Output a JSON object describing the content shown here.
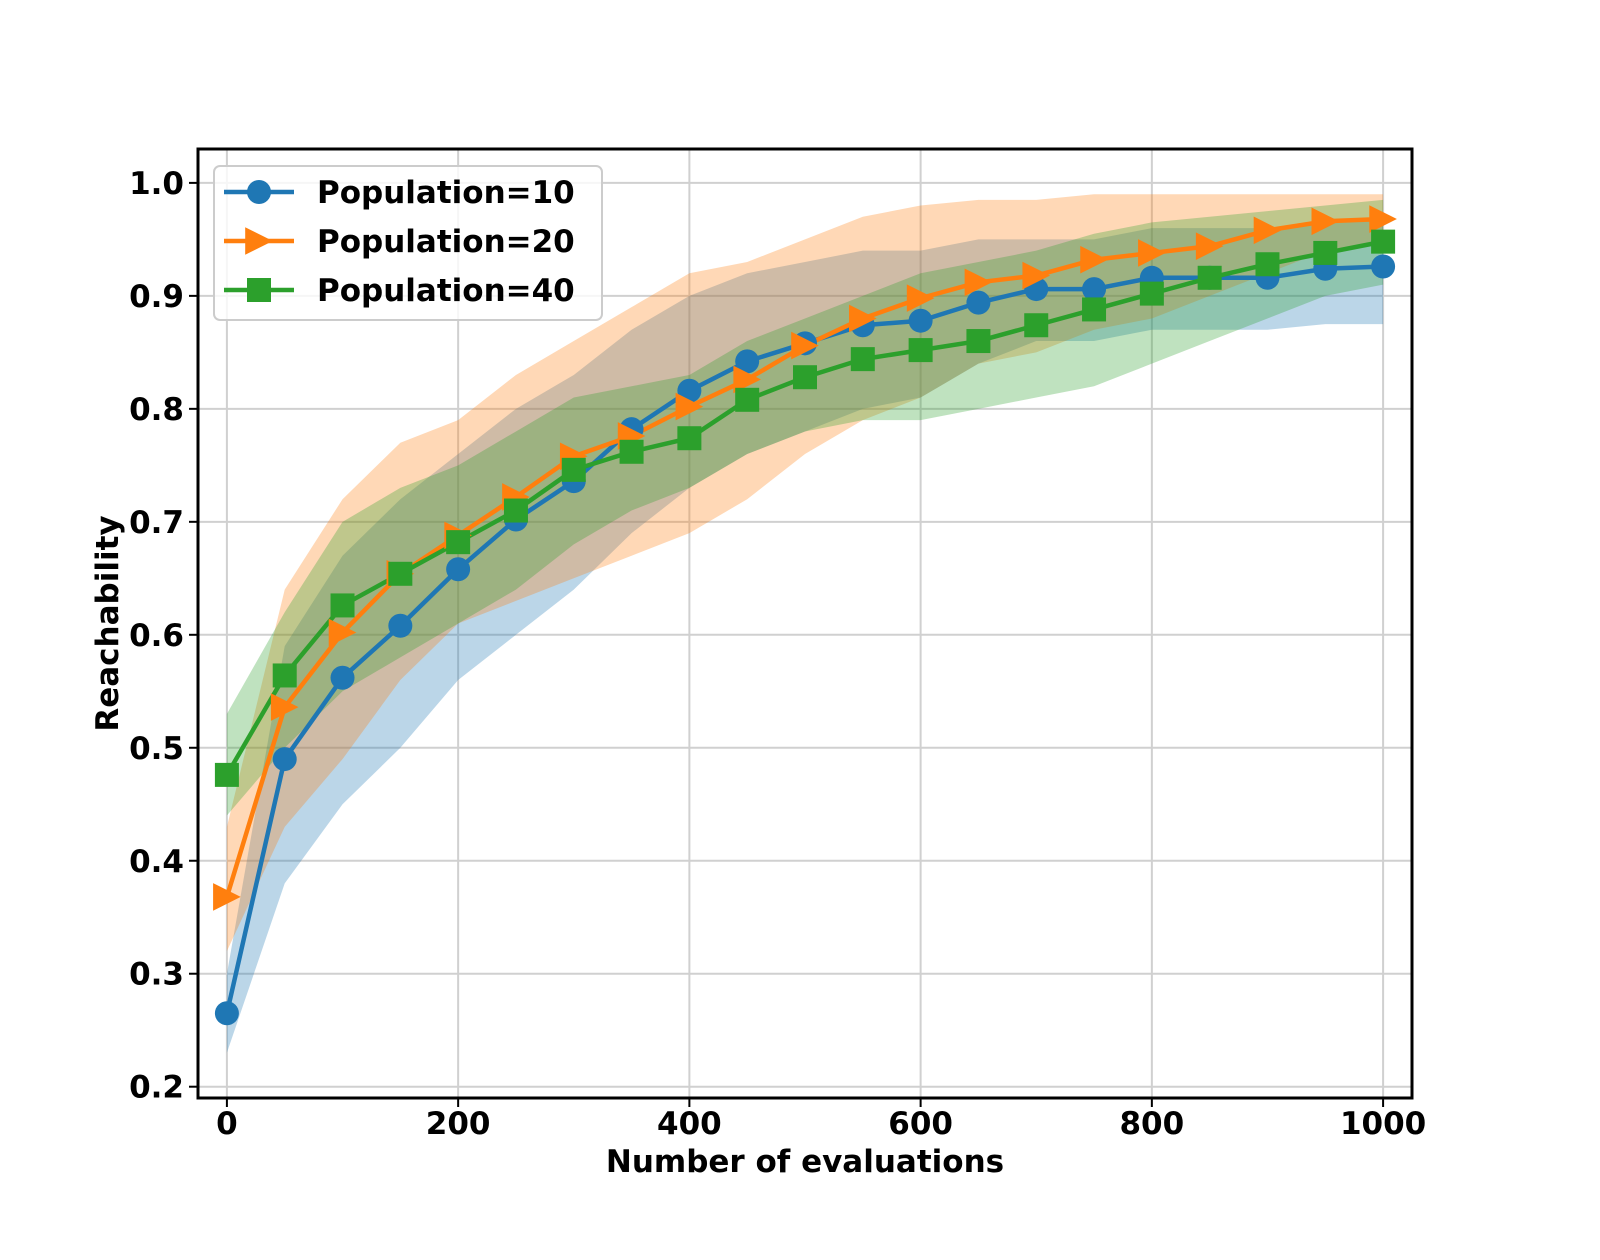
{
  "chart_data": {
    "type": "line",
    "title": "",
    "xlabel": "Number of evaluations",
    "ylabel": "Reachability",
    "xlim": [
      -25,
      1025
    ],
    "ylim": [
      0.19,
      1.03
    ],
    "xticks": [
      0,
      200,
      400,
      600,
      800,
      1000
    ],
    "yticks": [
      0.2,
      0.3,
      0.4,
      0.5,
      0.6,
      0.7,
      0.8,
      0.9,
      1.0
    ],
    "xtick_labels": [
      "0",
      "200",
      "400",
      "600",
      "800",
      "1000"
    ],
    "ytick_labels": [
      "0.2",
      "0.3",
      "0.4",
      "0.5",
      "0.6",
      "0.7",
      "0.8",
      "0.9",
      "1.0"
    ],
    "grid": true,
    "legend_position": "top-left",
    "x": [
      0,
      50,
      100,
      150,
      200,
      250,
      300,
      350,
      400,
      450,
      500,
      550,
      600,
      650,
      700,
      750,
      800,
      850,
      900,
      950,
      1000
    ],
    "series": [
      {
        "name": "Population=10",
        "color": "#1f77b4",
        "marker": "circle",
        "values": [
          0.265,
          0.49,
          0.562,
          0.608,
          0.658,
          0.702,
          0.736,
          0.782,
          0.816,
          0.842,
          0.858,
          0.874,
          0.878,
          0.894,
          0.906,
          0.906,
          0.916,
          0.916,
          0.916,
          0.924,
          0.926
        ],
        "band_lower": [
          0.23,
          0.38,
          0.45,
          0.5,
          0.56,
          0.6,
          0.64,
          0.69,
          0.73,
          0.76,
          0.78,
          0.8,
          0.81,
          0.84,
          0.86,
          0.86,
          0.87,
          0.87,
          0.87,
          0.875,
          0.875
        ],
        "band_upper": [
          0.3,
          0.59,
          0.67,
          0.72,
          0.76,
          0.8,
          0.83,
          0.87,
          0.9,
          0.92,
          0.93,
          0.94,
          0.94,
          0.95,
          0.95,
          0.95,
          0.96,
          0.96,
          0.96,
          0.965,
          0.97
        ]
      },
      {
        "name": "Population=20",
        "color": "#ff7f0e",
        "marker": "triangle-right",
        "values": [
          0.368,
          0.536,
          0.602,
          0.654,
          0.688,
          0.722,
          0.758,
          0.776,
          0.802,
          0.826,
          0.856,
          0.88,
          0.898,
          0.912,
          0.918,
          0.932,
          0.938,
          0.944,
          0.958,
          0.966,
          0.968
        ],
        "band_lower": [
          0.32,
          0.43,
          0.49,
          0.56,
          0.61,
          0.63,
          0.65,
          0.67,
          0.69,
          0.72,
          0.76,
          0.79,
          0.81,
          0.84,
          0.85,
          0.87,
          0.88,
          0.9,
          0.92,
          0.94,
          0.945
        ],
        "band_upper": [
          0.43,
          0.64,
          0.72,
          0.77,
          0.79,
          0.83,
          0.86,
          0.89,
          0.92,
          0.93,
          0.95,
          0.97,
          0.98,
          0.985,
          0.985,
          0.99,
          0.99,
          0.99,
          0.99,
          0.99,
          0.99
        ]
      },
      {
        "name": "Population=40",
        "color": "#2ca02c",
        "marker": "square",
        "values": [
          0.476,
          0.564,
          0.626,
          0.654,
          0.682,
          0.71,
          0.746,
          0.762,
          0.774,
          0.808,
          0.828,
          0.844,
          0.852,
          0.86,
          0.874,
          0.888,
          0.902,
          0.916,
          0.928,
          0.938,
          0.948
        ],
        "band_lower": [
          0.44,
          0.5,
          0.55,
          0.58,
          0.61,
          0.64,
          0.68,
          0.71,
          0.73,
          0.76,
          0.78,
          0.79,
          0.79,
          0.8,
          0.81,
          0.82,
          0.84,
          0.86,
          0.88,
          0.9,
          0.91
        ],
        "band_upper": [
          0.53,
          0.62,
          0.7,
          0.73,
          0.75,
          0.78,
          0.81,
          0.82,
          0.83,
          0.86,
          0.88,
          0.9,
          0.92,
          0.93,
          0.94,
          0.955,
          0.965,
          0.97,
          0.975,
          0.98,
          0.985
        ]
      }
    ]
  }
}
